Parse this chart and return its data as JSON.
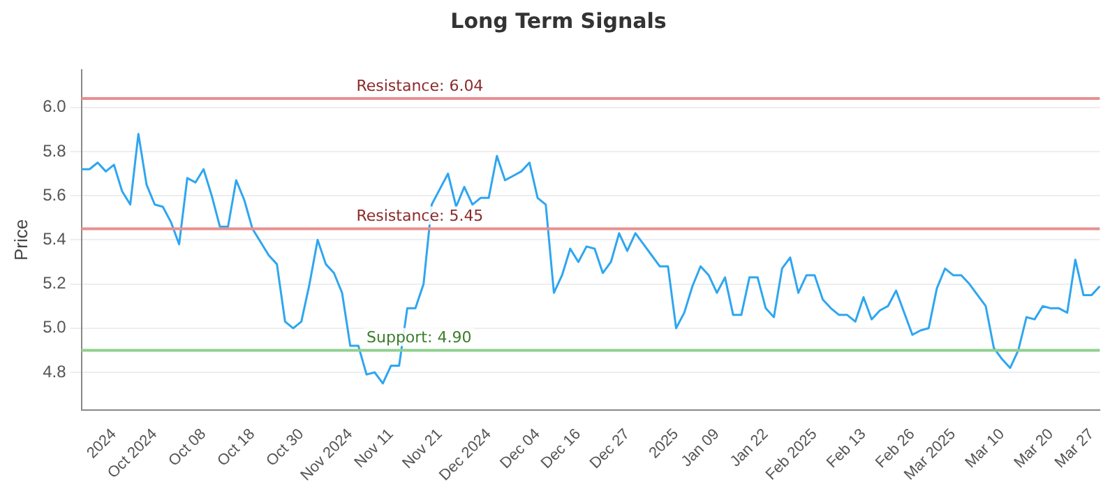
{
  "chart_data": {
    "type": "line",
    "title": "Long Term Signals",
    "ylabel": "Price",
    "categories": [
      null,
      null,
      null,
      null,
      "2024",
      null,
      null,
      null,
      null,
      "Oct 2024",
      null,
      null,
      null,
      null,
      null,
      "Oct 08",
      null,
      null,
      null,
      null,
      null,
      "Oct 18",
      null,
      null,
      null,
      null,
      null,
      "Oct 30",
      null,
      null,
      null,
      null,
      null,
      "Nov 2024",
      null,
      null,
      null,
      null,
      "Nov 11",
      null,
      null,
      null,
      null,
      null,
      "Nov 21",
      null,
      null,
      null,
      null,
      null,
      "Dec 2024",
      null,
      null,
      null,
      null,
      null,
      "Dec 04",
      null,
      null,
      null,
      null,
      "Dec 16",
      null,
      null,
      null,
      null,
      null,
      "Dec 27",
      null,
      null,
      null,
      null,
      null,
      "2025",
      null,
      null,
      null,
      null,
      "Jan 09",
      null,
      null,
      null,
      null,
      null,
      "Jan 22",
      null,
      null,
      null,
      null,
      null,
      "Feb 2025",
      null,
      null,
      null,
      null,
      null,
      "Feb 13",
      null,
      null,
      null,
      null,
      null,
      "Feb 26",
      null,
      null,
      null,
      null,
      "Mar 2025",
      null,
      null,
      null,
      null,
      null,
      "Mar 10",
      null,
      null,
      null,
      null,
      null,
      "Mar 20",
      null,
      null,
      null,
      null,
      "Mar 27",
      null
    ],
    "series": [
      {
        "color": "#2ea6f0",
        "values": [
          5.72,
          5.72,
          5.75,
          5.71,
          5.74,
          5.62,
          5.56,
          5.88,
          5.65,
          5.56,
          5.55,
          5.48,
          5.38,
          5.68,
          5.66,
          5.72,
          5.6,
          5.46,
          5.46,
          5.67,
          5.58,
          5.45,
          5.39,
          5.33,
          5.29,
          5.03,
          5.0,
          5.03,
          5.2,
          5.4,
          5.29,
          5.25,
          5.16,
          4.92,
          4.92,
          4.79,
          4.8,
          4.75,
          4.83,
          4.83,
          5.09,
          5.09,
          5.2,
          5.56,
          5.63,
          5.7,
          5.55,
          5.64,
          5.56,
          5.59,
          5.59,
          5.78,
          5.67,
          5.69,
          5.71,
          5.75,
          5.59,
          5.56,
          5.16,
          5.24,
          5.36,
          5.3,
          5.37,
          5.36,
          5.25,
          5.3,
          5.43,
          5.35,
          5.43,
          5.38,
          5.33,
          5.28,
          5.28,
          5.0,
          5.07,
          5.19,
          5.28,
          5.24,
          5.16,
          5.23,
          5.06,
          5.06,
          5.23,
          5.23,
          5.09,
          5.05,
          5.27,
          5.32,
          5.16,
          5.24,
          5.24,
          5.13,
          5.09,
          5.06,
          5.06,
          5.03,
          5.14,
          5.04,
          5.08,
          5.1,
          5.17,
          5.07,
          4.97,
          4.99,
          5.0,
          5.18,
          5.27,
          5.24,
          5.24,
          5.2,
          5.15,
          5.1,
          4.91,
          4.86,
          4.82,
          4.9,
          5.05,
          5.04,
          5.1,
          5.09,
          5.09,
          5.07,
          5.31,
          5.15,
          5.15,
          5.19
        ]
      }
    ],
    "ylim": [
      4.63,
      6.17
    ],
    "yticks": [
      4.8,
      {
        "value": 5,
        "label": "5.0"
      },
      5.2,
      5.4,
      5.6,
      5.8,
      {
        "value": 6,
        "label": "6.0"
      }
    ],
    "ref_lines": [
      {
        "axis": "y",
        "value": 6.04,
        "label": "Resistance: 6.04",
        "color": "#e88f8f"
      },
      {
        "axis": "y",
        "value": 5.45,
        "label": "Resistance: 5.45",
        "color": "#e88f8f"
      },
      {
        "axis": "y",
        "value": 4.9,
        "label": "Support: 4.90",
        "color": "#8fd08f"
      }
    ],
    "grid": "y",
    "legend": false,
    "marker": "none",
    "line_style": "solid"
  }
}
